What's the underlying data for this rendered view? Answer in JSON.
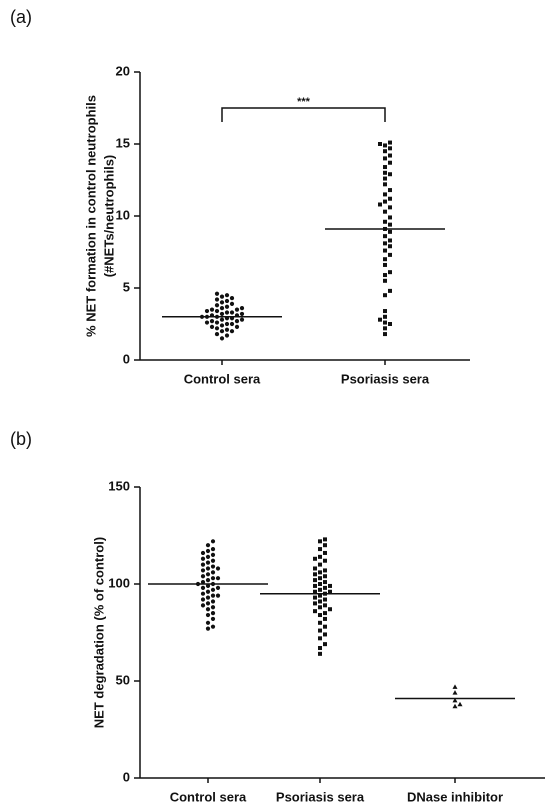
{
  "chart_data": [
    {
      "type": "strip",
      "label": "(a)",
      "ylabel": [
        "% NET formation in control neutrophils",
        "(#NETs/neutrophils)"
      ],
      "categories": [
        "Control sera",
        "Psoriasis sera"
      ],
      "markers": [
        "circle",
        "square"
      ],
      "color": "#111111",
      "values": [
        [
          1.5,
          1.7,
          1.8,
          2.0,
          2.0,
          2.1,
          2.2,
          2.3,
          2.3,
          2.4,
          2.5,
          2.5,
          2.6,
          2.6,
          2.7,
          2.7,
          2.8,
          2.8,
          2.9,
          2.9,
          3.0,
          3.0,
          3.0,
          3.1,
          3.1,
          3.2,
          3.2,
          3.3,
          3.3,
          3.4,
          3.4,
          3.5,
          3.5,
          3.6,
          3.6,
          3.7,
          3.8,
          3.9,
          4.0,
          4.1,
          4.2,
          4.3,
          4.4,
          4.5,
          4.6
        ],
        [
          1.8,
          2.2,
          2.5,
          2.6,
          2.8,
          3.0,
          3.4,
          4.5,
          4.8,
          5.5,
          5.9,
          6.1,
          6.6,
          7.0,
          7.3,
          7.6,
          7.9,
          8.1,
          8.3,
          8.6,
          8.9,
          9.1,
          9.4,
          9.6,
          9.9,
          10.3,
          10.6,
          11.0,
          11.2,
          11.5,
          11.8,
          12.2,
          12.6,
          13.0,
          13.4,
          13.7,
          14.0,
          14.2,
          14.5,
          14.7,
          14.9,
          15.0,
          15.1,
          10.8,
          12.9
        ]
      ],
      "means": [
        3.0,
        9.1
      ],
      "ylim": [
        0,
        20
      ],
      "yticks": [
        0,
        5,
        10,
        15,
        20
      ],
      "annotations": [
        {
          "text": "***",
          "from": 0,
          "to": 1,
          "y": 17.5
        }
      ]
    },
    {
      "type": "strip",
      "label": "(b)",
      "ylabel": [
        "NET degradation (% of control)"
      ],
      "categories": [
        "Control sera",
        "Psoriasis sera",
        "DNase inhibitor"
      ],
      "markers": [
        "circle",
        "square",
        "triangle"
      ],
      "color": "#111111",
      "values": [
        [
          77,
          78,
          80,
          82,
          84,
          85,
          87,
          88,
          89,
          90,
          91,
          92,
          93,
          94,
          95,
          96,
          97,
          98,
          98,
          99,
          100,
          100,
          101,
          102,
          103,
          104,
          105,
          106,
          107,
          108,
          109,
          110,
          111,
          112,
          113,
          114,
          115,
          116,
          117,
          118,
          120,
          122,
          94,
          103,
          108
        ],
        [
          64,
          67,
          69,
          72,
          74,
          76,
          78,
          80,
          82,
          84,
          85,
          86,
          88,
          89,
          90,
          91,
          92,
          93,
          94,
          95,
          96,
          97,
          98,
          99,
          100,
          101,
          102,
          103,
          104,
          106,
          107,
          108,
          110,
          112,
          114,
          116,
          118,
          120,
          122,
          123,
          87,
          96,
          99,
          105,
          113
        ],
        [
          37,
          38,
          40,
          44,
          47
        ]
      ],
      "means": [
        100,
        95,
        41
      ],
      "ylim": [
        0,
        150
      ],
      "yticks": [
        0,
        50,
        100,
        150
      ]
    }
  ]
}
